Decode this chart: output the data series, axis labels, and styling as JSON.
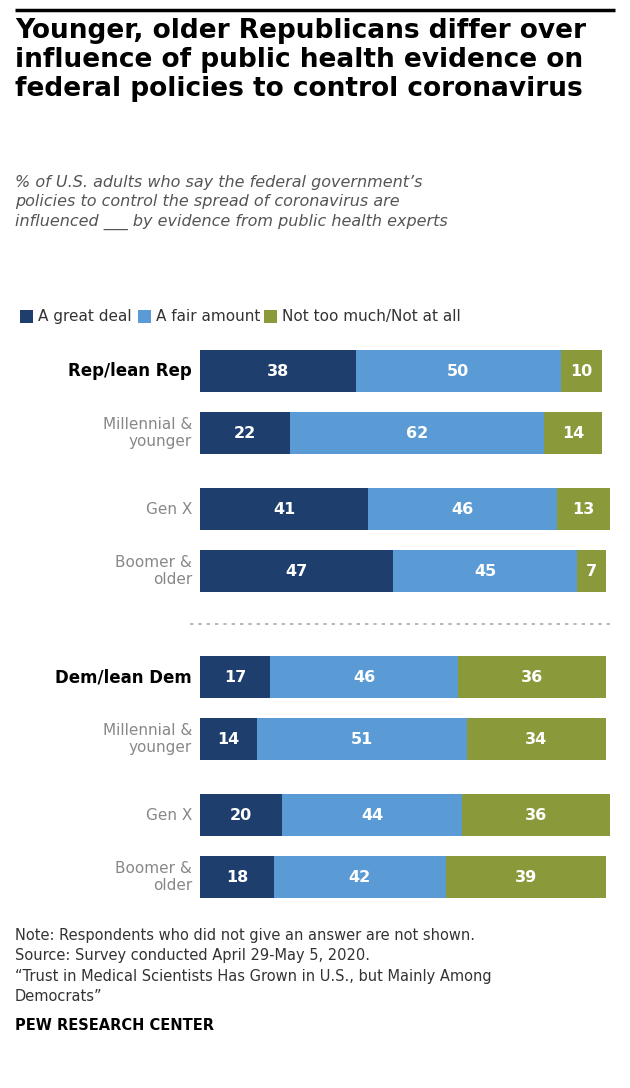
{
  "title": "Younger, older Republicans differ over\ninfluence of public health evidence on\nfederal policies to control coronavirus",
  "subtitle": "% of U.S. adults who say the federal government’s\npolicies to control the spread of coronavirus are\ninfluenced ___ by evidence from public health experts",
  "categories": [
    "Rep/lean Rep",
    "Millennial &\nyounger",
    "Gen X",
    "Boomer &\nolder",
    "Dem/lean Dem",
    "Millennial &\nyounger",
    "Gen X",
    "Boomer &\nolder"
  ],
  "is_header": [
    true,
    false,
    false,
    false,
    true,
    false,
    false,
    false
  ],
  "values": [
    [
      38,
      50,
      10
    ],
    [
      22,
      62,
      14
    ],
    [
      41,
      46,
      13
    ],
    [
      47,
      45,
      7
    ],
    [
      17,
      46,
      36
    ],
    [
      14,
      51,
      34
    ],
    [
      20,
      44,
      36
    ],
    [
      18,
      42,
      39
    ]
  ],
  "colors": [
    "#1e3f6e",
    "#5b9bd5",
    "#8a9a3b"
  ],
  "legend_labels": [
    "A great deal",
    "A fair amount",
    "Not too much/Not at all"
  ],
  "note": "Note: Respondents who did not give an answer are not shown.\nSource: Survey conducted April 29-May 5, 2020.\n“Trust in Medical Scientists Has Grown in U.S., but Mainly Among\nDemocrats”",
  "source_bold": "PEW RESEARCH CENTER",
  "header_color": "#000000",
  "subcat_color": "#888888",
  "bar_height": 0.55,
  "fig_width": 6.3,
  "fig_height": 10.88,
  "dpi": 100
}
